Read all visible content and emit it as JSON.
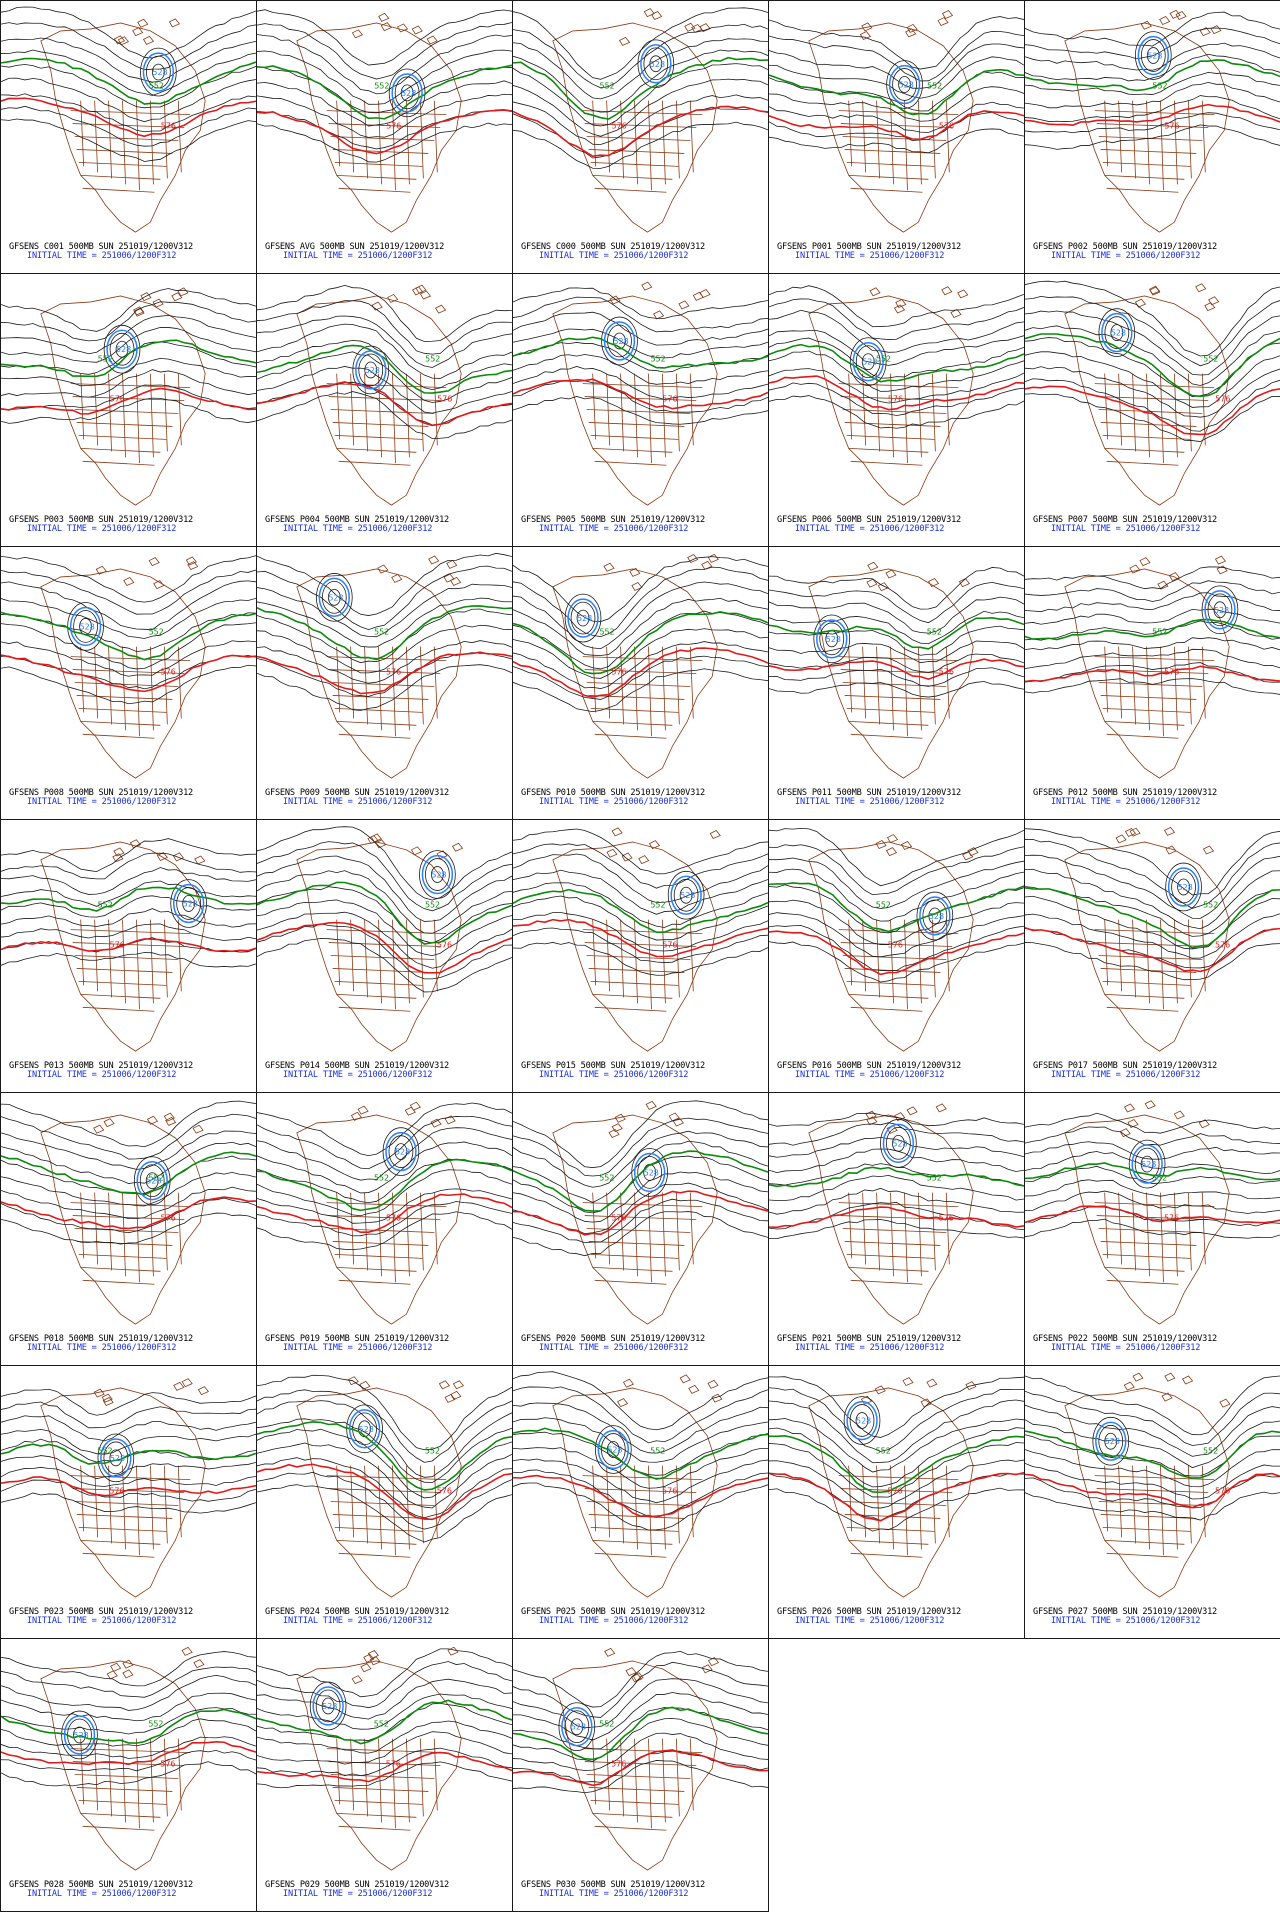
{
  "figure": {
    "colors": {
      "contour_black": "#1a1a1a",
      "contour_green": "#0b8a0b",
      "contour_red": "#e01a1a",
      "contour_blue": "#2a7fff",
      "coastline_brown": "#8a3a14",
      "initial_time_text": "#1a30e0"
    },
    "contour_labels": {
      "green": "552",
      "red": "576",
      "blue": "528"
    }
  },
  "panels": [
    {
      "title": "GFSENS C001 500MB SUN 251019/1200V312",
      "initial_time": "INITIAL TIME = 251006/1200F312"
    },
    {
      "title": "GFSENS AVG 500MB SUN 251019/1200V312",
      "initial_time": "INITIAL TIME = 251006/1200F312"
    },
    {
      "title": "GFSENS C000 500MB SUN 251019/1200V312",
      "initial_time": "INITIAL TIME = 251006/1200F312"
    },
    {
      "title": "GFSENS P001 500MB SUN 251019/1200V312",
      "initial_time": "INITIAL TIME = 251006/1200F312"
    },
    {
      "title": "GFSENS P002 500MB SUN 251019/1200V312",
      "initial_time": "INITIAL TIME = 251006/1200F312"
    },
    {
      "title": "GFSENS P003 500MB SUN 251019/1200V312",
      "initial_time": "INITIAL TIME = 251006/1200F312"
    },
    {
      "title": "GFSENS P004 500MB SUN 251019/1200V312",
      "initial_time": "INITIAL TIME = 251006/1200F312"
    },
    {
      "title": "GFSENS P005 500MB SUN 251019/1200V312",
      "initial_time": "INITIAL TIME = 251006/1200F312"
    },
    {
      "title": "GFSENS P006 500MB SUN 251019/1200V312",
      "initial_time": "INITIAL TIME = 251006/1200F312"
    },
    {
      "title": "GFSENS P007 500MB SUN 251019/1200V312",
      "initial_time": "INITIAL TIME = 251006/1200F312"
    },
    {
      "title": "GFSENS P008 500MB SUN 251019/1200V312",
      "initial_time": "INITIAL TIME = 251006/1200F312"
    },
    {
      "title": "GFSENS P009 500MB SUN 251019/1200V312",
      "initial_time": "INITIAL TIME = 251006/1200F312"
    },
    {
      "title": "GFSENS P010 500MB SUN 251019/1200V312",
      "initial_time": "INITIAL TIME = 251006/1200F312"
    },
    {
      "title": "GFSENS P011 500MB SUN 251019/1200V312",
      "initial_time": "INITIAL TIME = 251006/1200F312"
    },
    {
      "title": "GFSENS P012 500MB SUN 251019/1200V312",
      "initial_time": "INITIAL TIME = 251006/1200F312"
    },
    {
      "title": "GFSENS P013 500MB SUN 251019/1200V312",
      "initial_time": "INITIAL TIME = 251006/1200F312"
    },
    {
      "title": "GFSENS P014 500MB SUN 251019/1200V312",
      "initial_time": "INITIAL TIME = 251006/1200F312"
    },
    {
      "title": "GFSENS P015 500MB SUN 251019/1200V312",
      "initial_time": "INITIAL TIME = 251006/1200F312"
    },
    {
      "title": "GFSENS P016 500MB SUN 251019/1200V312",
      "initial_time": "INITIAL TIME = 251006/1200F312"
    },
    {
      "title": "GFSENS P017 500MB SUN 251019/1200V312",
      "initial_time": "INITIAL TIME = 251006/1200F312"
    },
    {
      "title": "GFSENS P018 500MB SUN 251019/1200V312",
      "initial_time": "INITIAL TIME = 251006/1200F312"
    },
    {
      "title": "GFSENS P019 500MB SUN 251019/1200V312",
      "initial_time": "INITIAL TIME = 251006/1200F312"
    },
    {
      "title": "GFSENS P020 500MB SUN 251019/1200V312",
      "initial_time": "INITIAL TIME = 251006/1200F312"
    },
    {
      "title": "GFSENS P021 500MB SUN 251019/1200V312",
      "initial_time": "INITIAL TIME = 251006/1200F312"
    },
    {
      "title": "GFSENS P022 500MB SUN 251019/1200V312",
      "initial_time": "INITIAL TIME = 251006/1200F312"
    },
    {
      "title": "GFSENS P023 500MB SUN 251019/1200V312",
      "initial_time": "INITIAL TIME = 251006/1200F312"
    },
    {
      "title": "GFSENS P024 500MB SUN 251019/1200V312",
      "initial_time": "INITIAL TIME = 251006/1200F312"
    },
    {
      "title": "GFSENS P025 500MB SUN 251019/1200V312",
      "initial_time": "INITIAL TIME = 251006/1200F312"
    },
    {
      "title": "GFSENS P026 500MB SUN 251019/1200V312",
      "initial_time": "INITIAL TIME = 251006/1200F312"
    },
    {
      "title": "GFSENS P027 500MB SUN 251019/1200V312",
      "initial_time": "INITIAL TIME = 251006/1200F312"
    },
    {
      "title": "GFSENS P028 500MB SUN 251019/1200V312",
      "initial_time": "INITIAL TIME = 251006/1200F312"
    },
    {
      "title": "GFSENS P029 500MB SUN 251019/1200V312",
      "initial_time": "INITIAL TIME = 251006/1200F312"
    },
    {
      "title": "GFSENS P030 500MB SUN 251019/1200V312",
      "initial_time": "INITIAL TIME = 251006/1200F312"
    }
  ]
}
